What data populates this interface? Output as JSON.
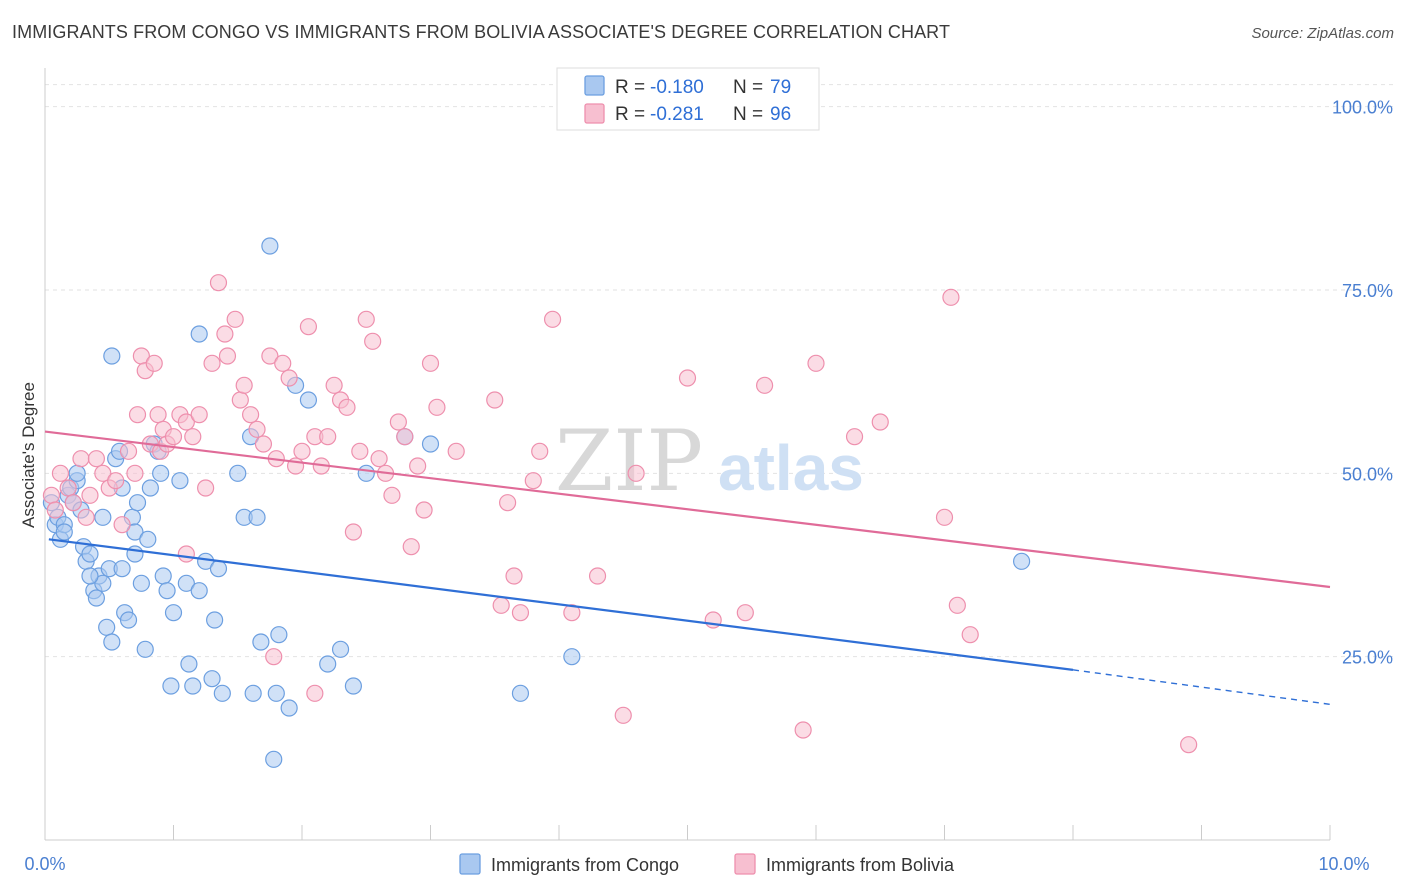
{
  "header": {
    "title": "IMMIGRANTS FROM CONGO VS IMMIGRANTS FROM BOLIVIA ASSOCIATE'S DEGREE CORRELATION CHART",
    "source": "Source: ZipAtlas.com"
  },
  "watermark": {
    "zip": "ZIP",
    "atlas": "atlas"
  },
  "legend": {
    "r_label": "R =",
    "n_label": "N =",
    "rows": [
      {
        "name": "Immigrants from Congo",
        "r": "-0.180",
        "n": "79",
        "color": "#a9c8f0",
        "stroke": "#6c9fe0"
      },
      {
        "name": "Immigrants from Bolivia",
        "r": "-0.281",
        "n": "96",
        "color": "#f7bfd0",
        "stroke": "#ee8fad"
      }
    ]
  },
  "chart_data": {
    "type": "scatter",
    "title": "IMMIGRANTS FROM CONGO VS IMMIGRANTS FROM BOLIVIA ASSOCIATE'S DEGREE CORRELATION CHART",
    "xlabel": "",
    "ylabel": "Associate's Degree",
    "xlim": [
      0,
      10
    ],
    "ylim": [
      0,
      105
    ],
    "x_tick_labels": [
      "0.0%",
      "10.0%"
    ],
    "y_ticks": [
      25,
      50,
      75,
      100
    ],
    "y_tick_labels": [
      "25.0%",
      "50.0%",
      "75.0%",
      "100.0%"
    ],
    "grid": true,
    "series": [
      {
        "name": "Immigrants from Congo",
        "color": "#a9c8f0",
        "stroke": "#6c9fe0",
        "line_color": "#2f6fd6",
        "trend": {
          "x0": 0.03,
          "y0": 41,
          "x1": 8.0,
          "y1": 23.2,
          "dash_to_x": 10.0,
          "dash_to_y": 18.5
        },
        "points": [
          [
            0.05,
            46
          ],
          [
            0.08,
            43
          ],
          [
            0.1,
            44
          ],
          [
            0.12,
            41
          ],
          [
            0.15,
            43
          ],
          [
            0.18,
            47
          ],
          [
            0.2,
            48
          ],
          [
            0.22,
            46
          ],
          [
            0.25,
            49
          ],
          [
            0.28,
            45
          ],
          [
            0.3,
            40
          ],
          [
            0.32,
            38
          ],
          [
            0.35,
            39
          ],
          [
            0.38,
            34
          ],
          [
            0.4,
            33
          ],
          [
            0.42,
            36
          ],
          [
            0.45,
            35
          ],
          [
            0.48,
            29
          ],
          [
            0.5,
            37
          ],
          [
            0.52,
            27
          ],
          [
            0.55,
            52
          ],
          [
            0.58,
            53
          ],
          [
            0.6,
            37
          ],
          [
            0.62,
            31
          ],
          [
            0.65,
            30
          ],
          [
            0.68,
            44
          ],
          [
            0.7,
            42
          ],
          [
            0.72,
            46
          ],
          [
            0.75,
            35
          ],
          [
            0.78,
            26
          ],
          [
            0.8,
            41
          ],
          [
            0.82,
            48
          ],
          [
            0.85,
            54
          ],
          [
            0.88,
            53
          ],
          [
            0.9,
            50
          ],
          [
            0.92,
            36
          ],
          [
            0.95,
            34
          ],
          [
            0.98,
            21
          ],
          [
            1.0,
            31
          ],
          [
            1.05,
            49
          ],
          [
            1.1,
            35
          ],
          [
            1.12,
            24
          ],
          [
            1.15,
            21
          ],
          [
            1.2,
            34
          ],
          [
            1.25,
            38
          ],
          [
            1.3,
            22
          ],
          [
            1.32,
            30
          ],
          [
            1.35,
            37
          ],
          [
            1.38,
            20
          ],
          [
            1.5,
            50
          ],
          [
            1.55,
            44
          ],
          [
            1.6,
            55
          ],
          [
            1.62,
            20
          ],
          [
            1.65,
            44
          ],
          [
            1.68,
            27
          ],
          [
            1.75,
            81
          ],
          [
            1.78,
            11
          ],
          [
            1.8,
            20
          ],
          [
            1.82,
            28
          ],
          [
            1.9,
            18
          ],
          [
            1.95,
            62
          ],
          [
            2.2,
            24
          ],
          [
            2.3,
            26
          ],
          [
            2.4,
            21
          ],
          [
            1.2,
            69
          ],
          [
            0.52,
            66
          ],
          [
            2.05,
            60
          ],
          [
            2.5,
            50
          ],
          [
            3.0,
            54
          ],
          [
            2.8,
            55
          ],
          [
            3.7,
            20
          ],
          [
            4.1,
            25
          ],
          [
            0.15,
            42
          ],
          [
            0.25,
            50
          ],
          [
            0.45,
            44
          ],
          [
            0.6,
            48
          ],
          [
            7.6,
            38
          ],
          [
            0.35,
            36
          ],
          [
            0.7,
            39
          ]
        ]
      },
      {
        "name": "Immigrants from Bolivia",
        "color": "#f7bfd0",
        "stroke": "#ee8fad",
        "line_color": "#e06b98",
        "trend": {
          "x0": 0.0,
          "y0": 55.7,
          "x1": 10.0,
          "y1": 34.5
        },
        "points": [
          [
            0.05,
            47
          ],
          [
            0.08,
            45
          ],
          [
            0.12,
            50
          ],
          [
            0.18,
            48
          ],
          [
            0.22,
            46
          ],
          [
            0.28,
            52
          ],
          [
            0.32,
            44
          ],
          [
            0.35,
            47
          ],
          [
            0.4,
            52
          ],
          [
            0.45,
            50
          ],
          [
            0.5,
            48
          ],
          [
            0.55,
            49
          ],
          [
            0.6,
            43
          ],
          [
            0.65,
            53
          ],
          [
            0.7,
            50
          ],
          [
            0.72,
            58
          ],
          [
            0.75,
            66
          ],
          [
            0.78,
            64
          ],
          [
            0.82,
            54
          ],
          [
            0.85,
            65
          ],
          [
            0.88,
            58
          ],
          [
            0.9,
            53
          ],
          [
            0.92,
            56
          ],
          [
            0.95,
            54
          ],
          [
            1.0,
            55
          ],
          [
            1.05,
            58
          ],
          [
            1.1,
            57
          ],
          [
            1.15,
            55
          ],
          [
            1.2,
            58
          ],
          [
            1.25,
            48
          ],
          [
            1.3,
            65
          ],
          [
            1.35,
            76
          ],
          [
            1.4,
            69
          ],
          [
            1.42,
            66
          ],
          [
            1.48,
            71
          ],
          [
            1.52,
            60
          ],
          [
            1.55,
            62
          ],
          [
            1.6,
            58
          ],
          [
            1.65,
            56
          ],
          [
            1.7,
            54
          ],
          [
            1.75,
            66
          ],
          [
            1.8,
            52
          ],
          [
            1.85,
            65
          ],
          [
            1.9,
            63
          ],
          [
            1.95,
            51
          ],
          [
            2.0,
            53
          ],
          [
            2.05,
            70
          ],
          [
            2.1,
            55
          ],
          [
            2.15,
            51
          ],
          [
            2.2,
            55
          ],
          [
            2.25,
            62
          ],
          [
            2.3,
            60
          ],
          [
            2.35,
            59
          ],
          [
            2.4,
            42
          ],
          [
            2.45,
            53
          ],
          [
            2.5,
            71
          ],
          [
            2.55,
            68
          ],
          [
            2.6,
            52
          ],
          [
            2.65,
            50
          ],
          [
            2.7,
            47
          ],
          [
            2.75,
            57
          ],
          [
            2.8,
            55
          ],
          [
            2.85,
            40
          ],
          [
            2.9,
            51
          ],
          [
            2.95,
            45
          ],
          [
            3.0,
            65
          ],
          [
            3.05,
            59
          ],
          [
            3.2,
            53
          ],
          [
            3.5,
            60
          ],
          [
            3.55,
            32
          ],
          [
            3.6,
            46
          ],
          [
            3.65,
            36
          ],
          [
            3.7,
            31
          ],
          [
            3.8,
            49
          ],
          [
            3.85,
            53
          ],
          [
            3.95,
            71
          ],
          [
            4.1,
            31
          ],
          [
            4.3,
            36
          ],
          [
            4.5,
            17
          ],
          [
            4.6,
            50
          ],
          [
            5.0,
            63
          ],
          [
            5.2,
            30
          ],
          [
            5.45,
            31
          ],
          [
            5.6,
            62
          ],
          [
            5.9,
            15
          ],
          [
            6.0,
            65
          ],
          [
            6.3,
            55
          ],
          [
            6.5,
            57
          ],
          [
            7.0,
            44
          ],
          [
            7.05,
            74
          ],
          [
            7.1,
            32
          ],
          [
            7.2,
            28
          ],
          [
            8.9,
            13
          ],
          [
            1.78,
            25
          ],
          [
            1.1,
            39
          ],
          [
            2.1,
            20
          ]
        ]
      }
    ]
  }
}
